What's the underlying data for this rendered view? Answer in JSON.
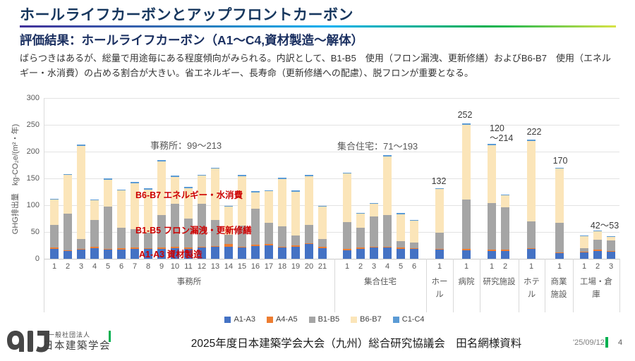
{
  "header": {
    "title": "ホールライフカーボンとアップフロントカーボン",
    "subtitle": "評価結果：ホールライフカーボン（A1～C4,資材製造～解体）",
    "body": "ばらつきはあるが、総量で用途毎にある程度傾向がみられる。内訳として、B1-B5　使用（フロン漏洩、更新修繕）およびB6-B7　使用（エネルギー・水消費）の占める割合が大きい。省エネルギー、長寿命（更新修繕への配慮）、脱フロンが重要となる。"
  },
  "chart_data": {
    "type": "bar",
    "stacked": true,
    "ylabel": "GHG排出量　kg-CO₂e/(m²・年)",
    "ylim": [
      0,
      300
    ],
    "ytick_step": 50,
    "grid": true,
    "legend_position": "bottom",
    "series_names": [
      "A1-A3",
      "A4-A5",
      "B1-B5",
      "B6-B7",
      "C1-C4"
    ],
    "legend": [
      {
        "name": "A1-A3",
        "color": "#4472C4"
      },
      {
        "name": "A4-A5",
        "color": "#ED7D31"
      },
      {
        "name": "B1-B5",
        "color": "#A5A5A5"
      },
      {
        "name": "B6-B7",
        "color": "#FBE5B9"
      },
      {
        "name": "C1-C4",
        "color": "#5B9BD5"
      }
    ],
    "groups": [
      {
        "label": "事務所",
        "bars": [
          {
            "label": "1",
            "values": [
              18,
              3,
              42,
              47,
              2
            ]
          },
          {
            "label": "2",
            "values": [
              14,
              2,
              68,
              72,
              2
            ]
          },
          {
            "label": "3",
            "values": [
              17,
              2,
              18,
              174,
              2
            ]
          },
          {
            "label": "4",
            "values": [
              20,
              3,
              50,
              36,
              2
            ]
          },
          {
            "label": "5",
            "values": [
              17,
              2,
              79,
              50,
              2
            ]
          },
          {
            "label": "6",
            "values": [
              17,
              3,
              38,
              69,
              2
            ]
          },
          {
            "label": "7",
            "values": [
              18,
              3,
              34,
              86,
              2
            ]
          },
          {
            "label": "8",
            "values": [
              18,
              2,
              29,
              80,
              2
            ]
          },
          {
            "label": "9",
            "values": [
              19,
              2,
              61,
              100,
              2
            ]
          },
          {
            "label": "10",
            "values": [
              20,
              2,
              80,
              51,
              2
            ]
          },
          {
            "label": "11",
            "values": [
              19,
              2,
              54,
              57,
              2
            ]
          },
          {
            "label": "12",
            "values": [
              21,
              2,
              79,
              53,
              2
            ]
          },
          {
            "label": "13",
            "values": [
              22,
              2,
              49,
              95,
              2
            ]
          },
          {
            "label": "14",
            "values": [
              23,
              4,
              18,
              52,
              2
            ]
          },
          {
            "label": "15",
            "values": [
              21,
              2,
              39,
              92,
              2
            ]
          },
          {
            "label": "16",
            "values": [
              24,
              2,
              68,
              30,
              2
            ]
          },
          {
            "label": "17",
            "values": [
              25,
              2,
              40,
              59,
              2
            ]
          },
          {
            "label": "18",
            "values": [
              21,
              2,
              37,
              89,
              2
            ]
          },
          {
            "label": "19",
            "values": [
              23,
              2,
              18,
              82,
              2
            ]
          },
          {
            "label": "20",
            "values": [
              27,
              2,
              34,
              91,
              2
            ]
          },
          {
            "label": "21",
            "values": [
              20,
              2,
              15,
              60,
              2
            ]
          }
        ]
      },
      {
        "label": "集合住宅",
        "bars": [
          {
            "label": "1",
            "values": [
              16,
              2,
              50,
              91,
              2
            ]
          },
          {
            "label": "2",
            "values": [
              19,
              2,
              37,
              26,
              2
            ]
          },
          {
            "label": "3",
            "values": [
              21,
              2,
              56,
              23,
              2
            ]
          },
          {
            "label": "4",
            "values": [
              21,
              2,
              58,
              110,
              2
            ]
          },
          {
            "label": "5",
            "values": [
              19,
              2,
              12,
              50,
              2
            ]
          },
          {
            "label": "6",
            "values": [
              18,
              2,
              10,
              41,
              1
            ]
          }
        ]
      },
      {
        "label": "ホール",
        "bars": [
          {
            "label": "1",
            "values": [
              17,
              2,
              30,
              81,
              2
            ]
          }
        ]
      },
      {
        "label": "病院",
        "bars": [
          {
            "label": "1",
            "values": [
              16,
              2,
              92,
              140,
              2
            ]
          }
        ]
      },
      {
        "label": "研究施設",
        "bars": [
          {
            "label": "1",
            "values": [
              15,
              2,
              87,
              108,
              2
            ]
          },
          {
            "label": "2",
            "values": [
              15,
              2,
              79,
              22,
              2
            ]
          }
        ]
      },
      {
        "label": "ホテル",
        "bars": [
          {
            "label": "1",
            "values": [
              18,
              2,
              50,
              150,
              2
            ]
          }
        ]
      },
      {
        "label": "商業施設",
        "bars": [
          {
            "label": "1",
            "values": [
              10,
              2,
              55,
              101,
              2
            ]
          }
        ]
      },
      {
        "label": "工場・倉庫",
        "bars": [
          {
            "label": "1",
            "values": [
              12,
              1,
              7,
              23,
              1
            ]
          },
          {
            "label": "2",
            "values": [
              15,
              2,
              19,
              16,
              1
            ]
          },
          {
            "label": "3",
            "values": [
              13,
              1,
              20,
              7,
              1
            ]
          }
        ]
      }
    ],
    "annotations": {
      "office_range": "事務所：99～213",
      "apartment_range": "集合住宅：71～193",
      "hall_value": "132",
      "hospital_value": "252",
      "research_range": "120\n～214",
      "hotel_value": "222",
      "commercial_value": "170",
      "factory_range": "42～53",
      "callout_b6b7": "B6-B7 エネルギー・水消費",
      "callout_b1b5": "B1-B5 フロン漏洩・更新修繕",
      "callout_a1a3": "A1-A3 資材製造"
    }
  },
  "footer": {
    "org_line1": "一般社団法人",
    "org_line2": "日本建築学会",
    "caption": "2025年度日本建築学会大会（九州）総合研究協議会　田名網様資料",
    "date": "'25/09/12",
    "page": "4"
  },
  "colors": {
    "accent_green": "#00B050",
    "annotation_red": "#CC0000",
    "title_navy": "#17375E"
  }
}
